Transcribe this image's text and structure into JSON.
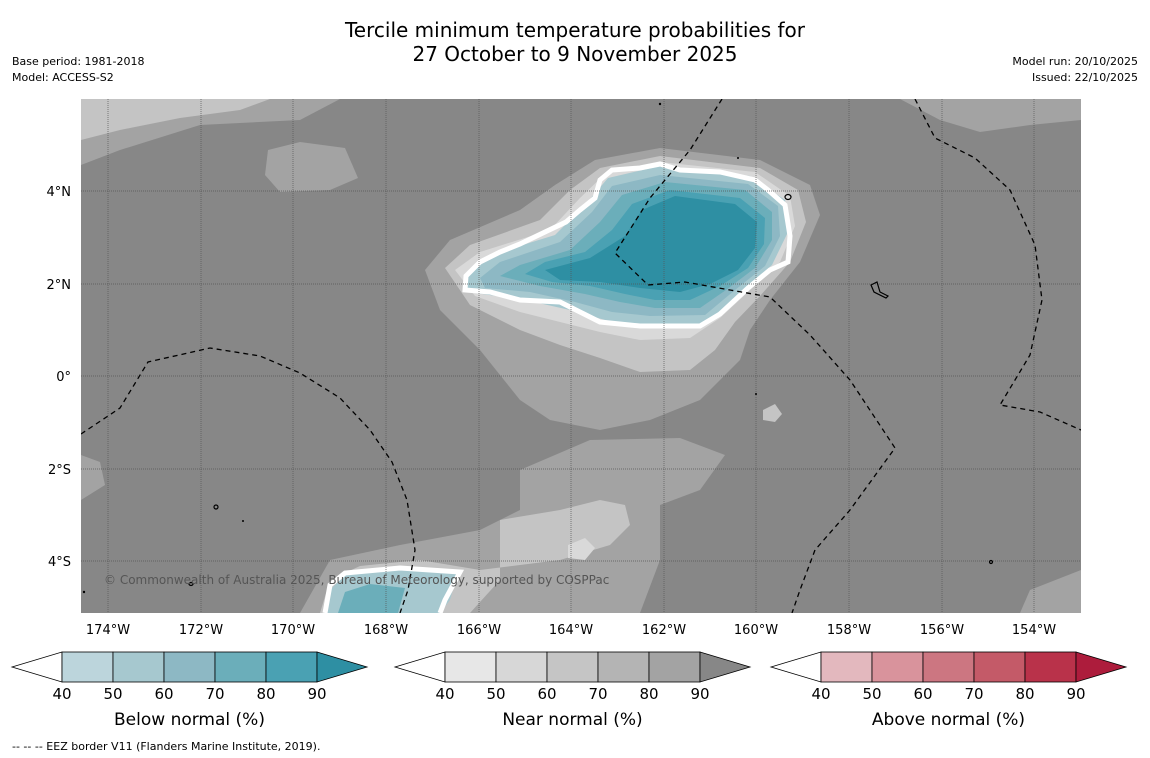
{
  "title": {
    "line1": "Tercile minimum temperature probabilities for",
    "line2": "27 October to 9 November 2025"
  },
  "meta_left": {
    "base_period": "Base period: 1981-2018",
    "model": "Model: ACCESS-S2"
  },
  "meta_right": {
    "model_run": "Model run: 20/10/2025",
    "issued": "Issued: 22/10/2025"
  },
  "map": {
    "lon_labels": [
      "174°W",
      "172°W",
      "170°W",
      "168°W",
      "166°W",
      "164°W",
      "162°W",
      "160°W",
      "158°W",
      "156°W",
      "154°W"
    ],
    "lat_labels": [
      "4°N",
      "2°N",
      "0°",
      "2°S",
      "4°S"
    ],
    "copyright": "© Commonwealth of Australia 2025, Bureau of Meteorology, supported by COSPPac",
    "colors": {
      "background": "#878787",
      "near_70": "#a3a3a3",
      "near_60": "#c4c4c4",
      "near_50": "#d9d9d9",
      "near_40": "#eaeaea",
      "below_50": "#a6c8cf",
      "below_60": "#8db8c4",
      "below_70": "#6baeba",
      "below_80": "#4aa1b3",
      "below_90": "#2e8fa3"
    }
  },
  "colorbars": [
    {
      "label": "Below normal (%)",
      "ticks": [
        "40",
        "50",
        "60",
        "70",
        "80",
        "90"
      ],
      "colors": [
        "#bcd5dc",
        "#a6c8cf",
        "#8db8c4",
        "#6baeba",
        "#4aa1b3",
        "#2e8fa3"
      ]
    },
    {
      "label": "Near normal (%)",
      "ticks": [
        "40",
        "50",
        "60",
        "70",
        "80",
        "90"
      ],
      "colors": [
        "#e7e7e7",
        "#d7d7d7",
        "#c5c5c5",
        "#b4b4b4",
        "#a3a3a3",
        "#878787"
      ]
    },
    {
      "label": "Above normal (%)",
      "ticks": [
        "40",
        "50",
        "60",
        "70",
        "80",
        "90"
      ],
      "colors": [
        "#e3b8be",
        "#d9939c",
        "#cc7681",
        "#c45a68",
        "#b9324a",
        "#ad1c3c"
      ]
    }
  ],
  "footnote": "--  --  -- EEZ border V11 (Flanders Marine Institute, 2019)."
}
